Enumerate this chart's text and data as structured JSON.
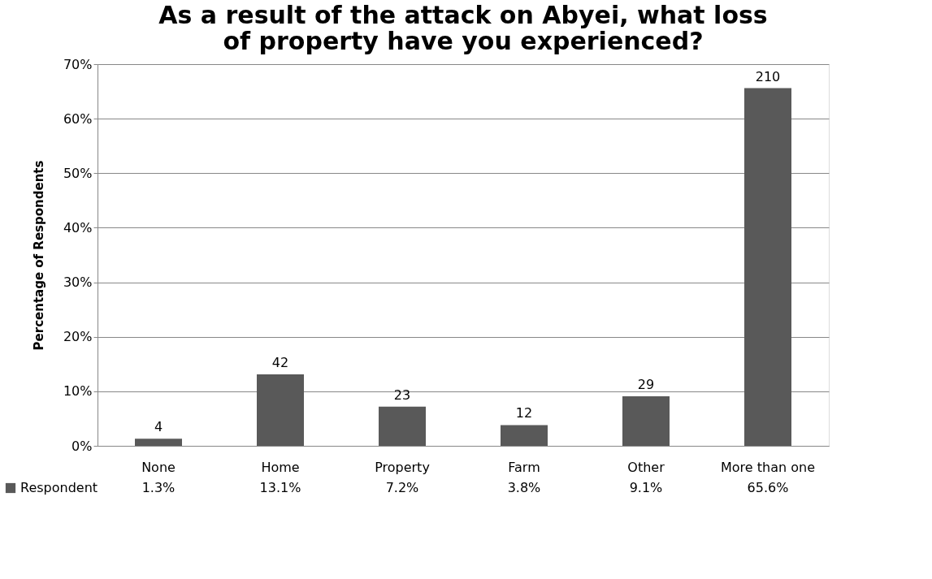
{
  "chart_data": {
    "type": "bar",
    "title": "As a result of the attack on Abyei, what loss of property have you experienced?",
    "ylabel": "Percentage of Respondents",
    "categories": [
      "None",
      "Home",
      "Property",
      "Farm",
      "Other",
      "More than one"
    ],
    "series": [
      {
        "name": "Respondent",
        "color": "#595959",
        "values": [
          1.3,
          13.1,
          7.2,
          3.8,
          9.1,
          65.6
        ],
        "value_labels": [
          "1.3%",
          "13.1%",
          "7.2%",
          "3.8%",
          "9.1%",
          "65.6%"
        ]
      }
    ],
    "ylim": [
      0,
      70
    ],
    "yticks": [
      {
        "value": 0,
        "label": "0%"
      },
      {
        "value": 10,
        "label": "10%"
      },
      {
        "value": 20,
        "label": "20%"
      },
      {
        "value": 30,
        "label": "30%"
      },
      {
        "value": 40,
        "label": "40%"
      },
      {
        "value": 50,
        "label": "50%"
      },
      {
        "value": 60,
        "label": "60%"
      },
      {
        "value": 70,
        "label": "70%"
      }
    ],
    "grid": "y",
    "legend": "bottom left",
    "annotations": [
      "4",
      "42",
      "23",
      "12",
      "29",
      "210"
    ]
  }
}
